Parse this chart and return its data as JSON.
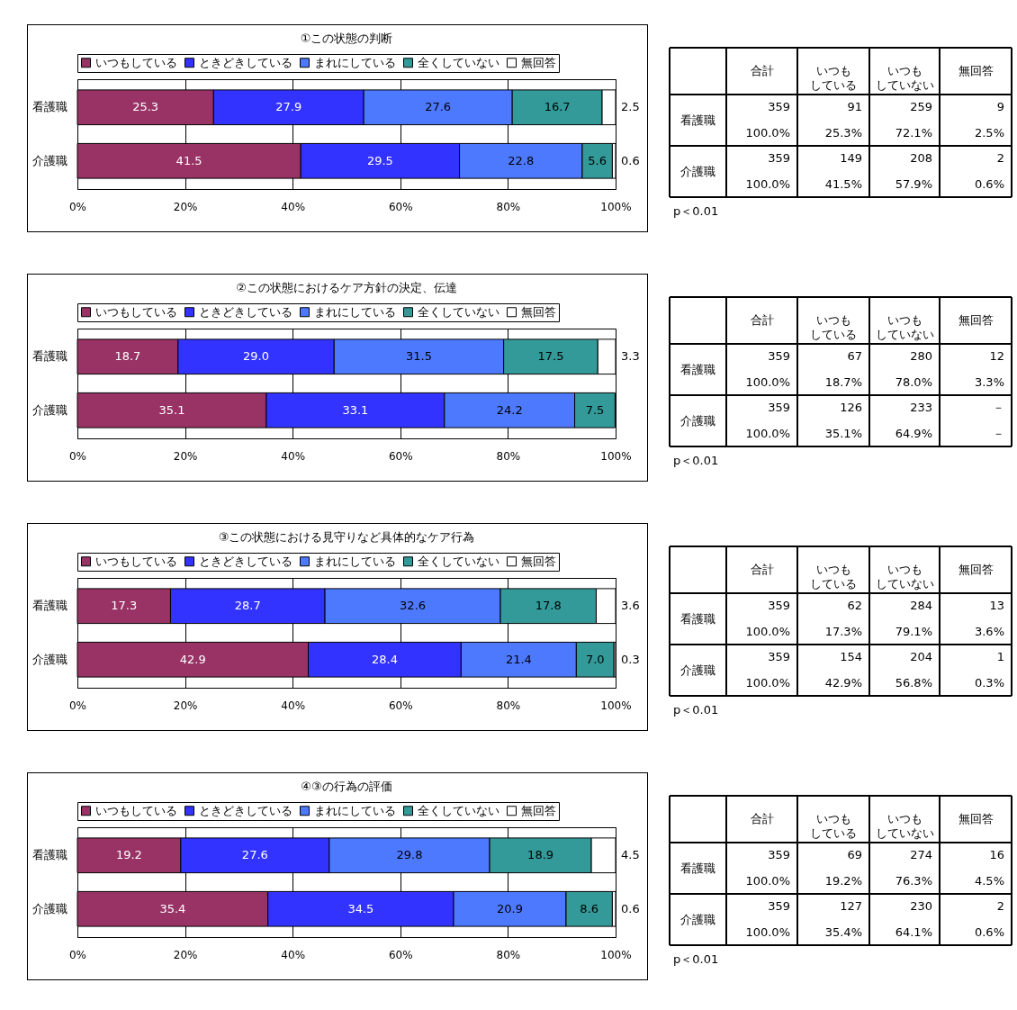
{
  "chart_data": [
    {
      "type": "bar",
      "title": "①この状態の判断",
      "orientation": "horizontal",
      "stacked": true,
      "categories": [
        "看護職",
        "介護職"
      ],
      "xlim": [
        0,
        100
      ],
      "xticks": [
        {
          "value": 0,
          "label": "0%"
        },
        {
          "value": 20,
          "label": "20%"
        },
        {
          "value": 40,
          "label": "40%"
        },
        {
          "value": 60,
          "label": "60%"
        },
        {
          "value": 80,
          "label": "80%"
        },
        {
          "value": 100,
          "label": "100%"
        }
      ],
      "grid": "x",
      "legend": "top",
      "series": [
        {
          "name": "いつもしている",
          "color": "#993366",
          "values": [
            25.3,
            41.5
          ],
          "value_labels": [
            "25.3",
            "41.5"
          ]
        },
        {
          "name": "ときどきしている",
          "color": "#3333ff",
          "values": [
            27.9,
            29.5
          ],
          "value_labels": [
            "27.9",
            "29.5"
          ]
        },
        {
          "name": "まれにしている",
          "color": "#4d79ff",
          "values": [
            27.6,
            22.8
          ],
          "value_labels": [
            "27.6",
            "22.8"
          ]
        },
        {
          "name": "全くしていない",
          "color": "#339999",
          "values": [
            16.7,
            5.6
          ],
          "value_labels": [
            "16.7",
            "5.6"
          ]
        },
        {
          "name": "無回答",
          "color": "#ffffff",
          "values": [
            2.5,
            0.6
          ],
          "value_labels": [
            "2.5",
            "0.6"
          ]
        }
      ]
    },
    {
      "type": "other",
      "categories": [
        null,
        "合計",
        "いつもしている",
        "いつもしていない",
        "無回答"
      ],
      "y_categories": [
        "看護職",
        null,
        "介護職",
        null
      ],
      "cell_labels": [
        [
          "359",
          "91",
          "259",
          "9"
        ],
        [
          "100.0%",
          "25.3%",
          "72.1%",
          "2.5%"
        ],
        [
          "359",
          "149",
          "208",
          "2"
        ],
        [
          "100.0%",
          "41.5%",
          "57.9%",
          "0.6%"
        ]
      ],
      "annotations": [
        "p＜0.01"
      ]
    },
    {
      "type": "bar",
      "title": "②この状態におけるケア方針の決定、伝達",
      "orientation": "horizontal",
      "stacked": true,
      "categories": [
        "看護職",
        "介護職"
      ],
      "xlim": [
        0,
        100
      ],
      "xticks": [
        {
          "value": 0,
          "label": "0%"
        },
        {
          "value": 20,
          "label": "20%"
        },
        {
          "value": 40,
          "label": "40%"
        },
        {
          "value": 60,
          "label": "60%"
        },
        {
          "value": 80,
          "label": "80%"
        },
        {
          "value": 100,
          "label": "100%"
        }
      ],
      "grid": "x",
      "legend": "top",
      "series": [
        {
          "name": "いつもしている",
          "color": "#993366",
          "values": [
            18.7,
            35.1
          ],
          "value_labels": [
            "18.7",
            "35.1"
          ]
        },
        {
          "name": "ときどきしている",
          "color": "#3333ff",
          "values": [
            29.0,
            33.1
          ],
          "value_labels": [
            "29.0",
            "33.1"
          ]
        },
        {
          "name": "まれにしている",
          "color": "#4d79ff",
          "values": [
            31.5,
            24.2
          ],
          "value_labels": [
            "31.5",
            "24.2"
          ]
        },
        {
          "name": "全くしていない",
          "color": "#339999",
          "values": [
            17.5,
            7.5
          ],
          "value_labels": [
            "17.5",
            "7.5"
          ]
        },
        {
          "name": "無回答",
          "color": "#ffffff",
          "values": [
            3.3,
            null
          ],
          "value_labels": [
            "3.3",
            null
          ]
        }
      ]
    },
    {
      "type": "other",
      "categories": [
        null,
        "合計",
        "いつもしている",
        "いつもしていない",
        "無回答"
      ],
      "y_categories": [
        "看護職",
        null,
        "介護職",
        null
      ],
      "cell_labels": [
        [
          "359",
          "67",
          "280",
          "12"
        ],
        [
          "100.0%",
          "18.7%",
          "78.0%",
          "3.3%"
        ],
        [
          "359",
          "126",
          "233",
          "－"
        ],
        [
          "100.0%",
          "35.1%",
          "64.9%",
          "－"
        ]
      ],
      "annotations": [
        "p＜0.01"
      ]
    },
    {
      "type": "bar",
      "title": "③この状態における見守りなど具体的なケア行為",
      "orientation": "horizontal",
      "stacked": true,
      "categories": [
        "看護職",
        "介護職"
      ],
      "xlim": [
        0,
        100
      ],
      "xticks": [
        {
          "value": 0,
          "label": "0%"
        },
        {
          "value": 20,
          "label": "20%"
        },
        {
          "value": 40,
          "label": "40%"
        },
        {
          "value": 60,
          "label": "60%"
        },
        {
          "value": 80,
          "label": "80%"
        },
        {
          "value": 100,
          "label": "100%"
        }
      ],
      "grid": "x",
      "legend": "top",
      "series": [
        {
          "name": "いつもしている",
          "color": "#993366",
          "values": [
            17.3,
            42.9
          ],
          "value_labels": [
            "17.3",
            "42.9"
          ]
        },
        {
          "name": "ときどきしている",
          "color": "#3333ff",
          "values": [
            28.7,
            28.4
          ],
          "value_labels": [
            "28.7",
            "28.4"
          ]
        },
        {
          "name": "まれにしている",
          "color": "#4d79ff",
          "values": [
            32.6,
            21.4
          ],
          "value_labels": [
            "32.6",
            "21.4"
          ]
        },
        {
          "name": "全くしていない",
          "color": "#339999",
          "values": [
            17.8,
            7.0
          ],
          "value_labels": [
            "17.8",
            "7.0"
          ]
        },
        {
          "name": "無回答",
          "color": "#ffffff",
          "values": [
            3.6,
            0.3
          ],
          "value_labels": [
            "3.6",
            "0.3"
          ]
        }
      ]
    },
    {
      "type": "other",
      "categories": [
        null,
        "合計",
        "いつもしている",
        "いつもしていない",
        "無回答"
      ],
      "y_categories": [
        "看護職",
        null,
        "介護職",
        null
      ],
      "cell_labels": [
        [
          "359",
          "62",
          "284",
          "13"
        ],
        [
          "100.0%",
          "17.3%",
          "79.1%",
          "3.6%"
        ],
        [
          "359",
          "154",
          "204",
          "1"
        ],
        [
          "100.0%",
          "42.9%",
          "56.8%",
          "0.3%"
        ]
      ],
      "annotations": [
        "p＜0.01"
      ]
    },
    {
      "type": "bar",
      "title": "④③の行為の評価",
      "orientation": "horizontal",
      "stacked": true,
      "categories": [
        "看護職",
        "介護職"
      ],
      "xlim": [
        0,
        100
      ],
      "xticks": [
        {
          "value": 0,
          "label": "0%"
        },
        {
          "value": 20,
          "label": "20%"
        },
        {
          "value": 40,
          "label": "40%"
        },
        {
          "value": 60,
          "label": "60%"
        },
        {
          "value": 80,
          "label": "80%"
        },
        {
          "value": 100,
          "label": "100%"
        }
      ],
      "grid": "x",
      "legend": "top",
      "series": [
        {
          "name": "いつもしている",
          "color": "#993366",
          "values": [
            19.2,
            35.4
          ],
          "value_labels": [
            "19.2",
            "35.4"
          ]
        },
        {
          "name": "ときどきしている",
          "color": "#3333ff",
          "values": [
            27.6,
            34.5
          ],
          "value_labels": [
            "27.6",
            "34.5"
          ]
        },
        {
          "name": "まれにしている",
          "color": "#4d79ff",
          "values": [
            29.8,
            20.9
          ],
          "value_labels": [
            "29.8",
            "20.9"
          ]
        },
        {
          "name": "全くしていない",
          "color": "#339999",
          "values": [
            18.9,
            8.6
          ],
          "value_labels": [
            "18.9",
            "8.6"
          ]
        },
        {
          "name": "無回答",
          "color": "#ffffff",
          "values": [
            4.5,
            0.6
          ],
          "value_labels": [
            "4.5",
            "0.6"
          ]
        }
      ]
    },
    {
      "type": "other",
      "categories": [
        null,
        "合計",
        "いつもしている",
        "いつもしていない",
        "無回答"
      ],
      "y_categories": [
        "看護職",
        null,
        "介護職",
        null
      ],
      "cell_labels": [
        [
          "359",
          "69",
          "274",
          "16"
        ],
        [
          "100.0%",
          "19.2%",
          "76.3%",
          "4.5%"
        ],
        [
          "359",
          "127",
          "230",
          "2"
        ],
        [
          "100.0%",
          "35.4%",
          "64.1%",
          "0.6%"
        ]
      ],
      "annotations": [
        "p＜0.01"
      ]
    }
  ]
}
